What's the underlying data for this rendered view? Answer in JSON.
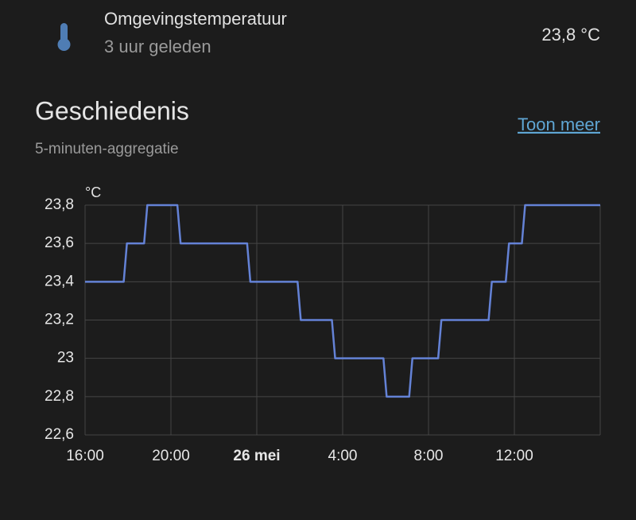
{
  "header": {
    "title": "Omgevingstemperatuur",
    "subtitle": "3 uur geleden",
    "value": "23,8 °C"
  },
  "section": {
    "title": "Geschiedenis",
    "subtitle": "5-minuten-aggregatie",
    "link": "Toon meer"
  },
  "chart_data": {
    "type": "line",
    "ylabel": "°C",
    "x": [
      0,
      1.8,
      1.95,
      2.75,
      2.9,
      4.3,
      4.45,
      7.55,
      7.7,
      9.9,
      10.05,
      11.5,
      11.65,
      13.9,
      14.05,
      15.1,
      15.25,
      16.45,
      16.6,
      18.8,
      18.95,
      19.6,
      19.75,
      20.35,
      20.5,
      24
    ],
    "values": [
      23.4,
      23.4,
      23.6,
      23.6,
      23.8,
      23.8,
      23.6,
      23.6,
      23.4,
      23.4,
      23.2,
      23.2,
      23,
      23,
      22.8,
      22.8,
      23,
      23,
      23.2,
      23.2,
      23.4,
      23.4,
      23.6,
      23.6,
      23.8,
      23.8
    ],
    "color": "#6482d6",
    "xlim": [
      0,
      24
    ],
    "xticks": [
      {
        "value": 0,
        "label": "16:00"
      },
      {
        "value": 4,
        "label": "20:00"
      },
      {
        "value": 8,
        "label": "26 mei"
      },
      {
        "value": 12,
        "label": "4:00"
      },
      {
        "value": 16,
        "label": "8:00"
      },
      {
        "value": 20,
        "label": "12:00"
      }
    ],
    "ylim": [
      22.6,
      23.8
    ],
    "yticks": [
      {
        "value": 22.6,
        "label": "22,6"
      },
      {
        "value": 22.8,
        "label": "22,8"
      },
      23,
      {
        "value": 23.2,
        "label": "23,2"
      },
      {
        "value": 23.4,
        "label": "23,4"
      },
      {
        "value": 23.6,
        "label": "23,6"
      },
      {
        "value": 23.8,
        "label": "23,8"
      }
    ],
    "grid": true
  }
}
